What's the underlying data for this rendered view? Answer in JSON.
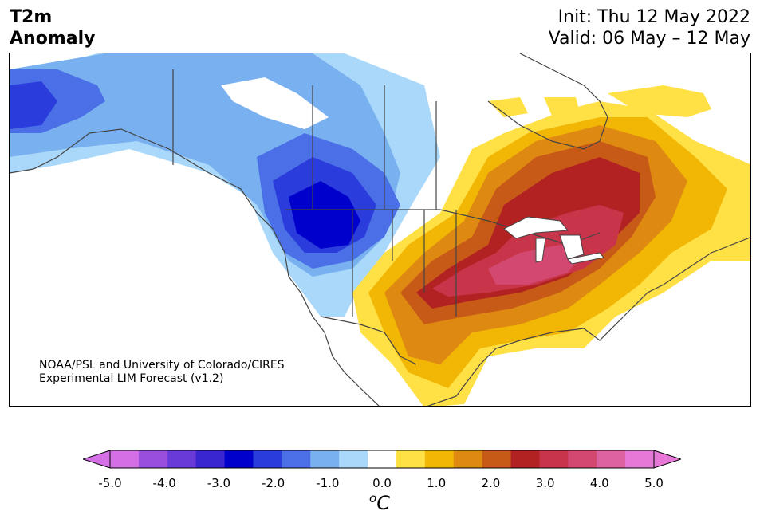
{
  "title": {
    "variable": "T2m",
    "measure": "Anomaly",
    "init": "Init: Thu 12 May 2022",
    "valid": "Valid: 06 May – 12 May"
  },
  "credit": {
    "line1": "NOAA/PSL and University of Colorado/CIRES",
    "line2": "Experimental LIM Forecast (v1.2)"
  },
  "colorbar": {
    "unit_base": "C",
    "unit_sup": "o",
    "levels": [
      -5.0,
      -4.5,
      -4.0,
      -3.5,
      -3.0,
      -2.5,
      -2.0,
      -1.5,
      -1.0,
      -0.5,
      0.5,
      1.0,
      1.5,
      2.0,
      2.5,
      3.0,
      3.5,
      4.0,
      4.5,
      5.0
    ],
    "colors": [
      "#d46fe6",
      "#9a4fdc",
      "#6a3ad8",
      "#3a26d0",
      "#0000cc",
      "#2a3cdc",
      "#4a6fe6",
      "#78b0f0",
      "#aad8fa",
      "#ffffff",
      "#ffe045",
      "#f2b705",
      "#de8a12",
      "#c85a18",
      "#b22222",
      "#c8344a",
      "#d24870",
      "#dc62a2",
      "#e878d8"
    ],
    "under_color": "#d46fe6",
    "over_color": "#e878d8",
    "tick_labels": [
      "-5.0",
      "-4.0",
      "-3.0",
      "-2.0",
      "-1.0",
      "0.0",
      "1.0",
      "2.0",
      "3.0",
      "4.0",
      "5.0"
    ]
  }
}
